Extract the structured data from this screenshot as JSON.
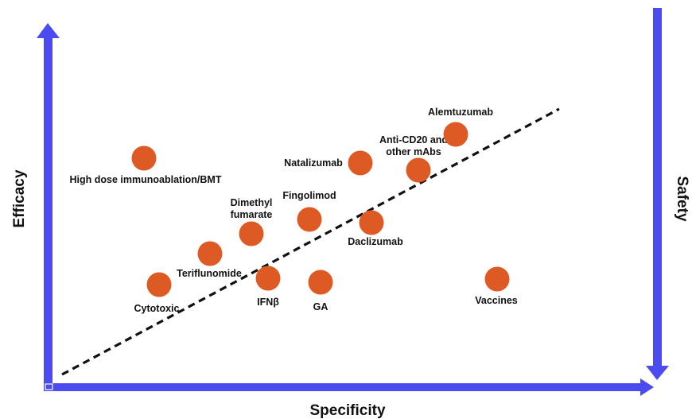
{
  "axes": {
    "x_title": "Specificity",
    "y_left_title": "Efficacy",
    "y_right_title": "Safety"
  },
  "colors": {
    "axis": "#4b4bf0",
    "point": "#dd5a24",
    "trend": "#111111"
  },
  "points": [
    {
      "id": "hdi",
      "lines": [
        "High dose immunoablation/BMT"
      ]
    },
    {
      "id": "cytotoxic",
      "lines": [
        "Cytotoxic"
      ]
    },
    {
      "id": "teriflunomide",
      "lines": [
        "Teriflunomide"
      ]
    },
    {
      "id": "dimethyl",
      "lines": [
        "Dimethyl",
        "fumarate"
      ]
    },
    {
      "id": "ifnb",
      "lines": [
        "IFNβ"
      ]
    },
    {
      "id": "fingolimod",
      "lines": [
        "Fingolimod"
      ]
    },
    {
      "id": "ga",
      "lines": [
        "GA"
      ]
    },
    {
      "id": "natalizumab",
      "lines": [
        "Natalizumab"
      ]
    },
    {
      "id": "daclizumab",
      "lines": [
        "Daclizumab"
      ]
    },
    {
      "id": "anticd20",
      "lines": [
        "Anti-CD20 and",
        "other mAbs"
      ]
    },
    {
      "id": "alemtuzumab",
      "lines": [
        "Alemtuzumab"
      ]
    },
    {
      "id": "vaccines",
      "lines": [
        "Vaccines"
      ]
    }
  ]
}
